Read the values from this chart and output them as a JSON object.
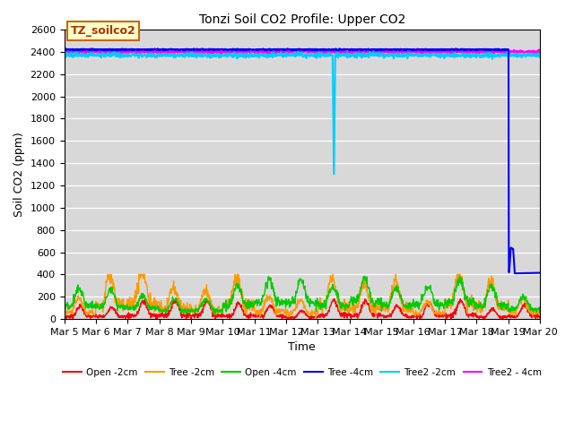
{
  "title": "Tonzi Soil CO2 Profile: Upper CO2",
  "xlabel": "Time",
  "ylabel": "Soil CO2 (ppm)",
  "ylim": [
    0,
    2600
  ],
  "yticks": [
    0,
    200,
    400,
    600,
    800,
    1000,
    1200,
    1400,
    1600,
    1800,
    2000,
    2200,
    2400,
    2600
  ],
  "annotation_text": "TZ_soilco2",
  "annotation_color": "#aa3300",
  "annotation_bg": "#ffffcc",
  "annotation_border": "#cc6600",
  "background_color": "#d8d8d8",
  "series": {
    "open_2cm": {
      "color": "#ff0000",
      "label": "Open -2cm",
      "lw": 1.0
    },
    "tree_2cm": {
      "color": "#ff9900",
      "label": "Tree -2cm",
      "lw": 1.0
    },
    "open_4cm": {
      "color": "#00cc00",
      "label": "Open -4cm",
      "lw": 1.0
    },
    "tree_4cm": {
      "color": "#0000ff",
      "label": "Tree -4cm",
      "lw": 1.5
    },
    "tree2_2cm": {
      "color": "#00ccff",
      "label": "Tree2 -2cm",
      "lw": 1.5
    },
    "tree2_4cm": {
      "color": "#ff00ff",
      "label": "Tree2 - 4cm",
      "lw": 1.5
    }
  },
  "x_start": 5,
  "x_end": 20,
  "xtick_labels": [
    "Mar 5",
    "Mar 6",
    "Mar 7",
    "Mar 8",
    "Mar 9",
    "Mar 10",
    "Mar 11",
    "Mar 12",
    "Mar 13",
    "Mar 14",
    "Mar 15",
    "Mar 16",
    "Mar 17",
    "Mar 18",
    "Mar 19",
    "Mar 20"
  ],
  "xtick_positions": [
    5,
    6,
    7,
    8,
    9,
    10,
    11,
    12,
    13,
    14,
    15,
    16,
    17,
    18,
    19,
    20
  ]
}
